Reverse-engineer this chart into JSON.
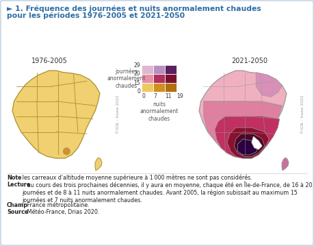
{
  "title_line1": "► 1. Fréquence des journées et nuits anormalement chaudes",
  "title_line2": "     pour les périodes 1976-2005 et 2021-2050",
  "title_color": "#2e6da4",
  "bg_color": "#dce6f0",
  "card_color": "#f0f4f8",
  "label_1976": "1976-2005",
  "label_2021": "2021-2050",
  "legend_title_v": "journées\nanormalement\nchaudes",
  "legend_title_h": "nuits\nanormalement\nchaudes",
  "legend_colors": [
    [
      "#ddb8d0",
      "#b890c0",
      "#5a2060"
    ],
    [
      "#e890a8",
      "#b03060",
      "#7a1030"
    ],
    [
      "#f0c860",
      "#d09020",
      "#b07010"
    ]
  ],
  "ign_text": "©IGN – Insee 2022",
  "note_bold": "Note",
  "note_text": " : les carreaux d'altitude moyenne supérieure à 1 000 mètres ne sont pas considérés.",
  "lecture_bold": "Lecture",
  "lecture_text": " : au cours des trois prochaines décennies, il y aura en moyenne, chaque été en Île-de-France, de 16 à 20 journées et de 8 à 11 nuits anormalement chaudes. Avant 2005, la région subissait au maximum 15 journées et 7 nuits anormalement chaudes.",
  "champ_bold": "Champ",
  "champ_text": " : France métropolitaine.",
  "source_bold": "Source",
  "source_text": " : Météo-France, Drias 2020.",
  "map1_color": "#f0d070",
  "map1_border": "#a89030",
  "map2_border": "#999999",
  "corsica_color1": "#f0d070",
  "corsica_color2": "#c870a0"
}
